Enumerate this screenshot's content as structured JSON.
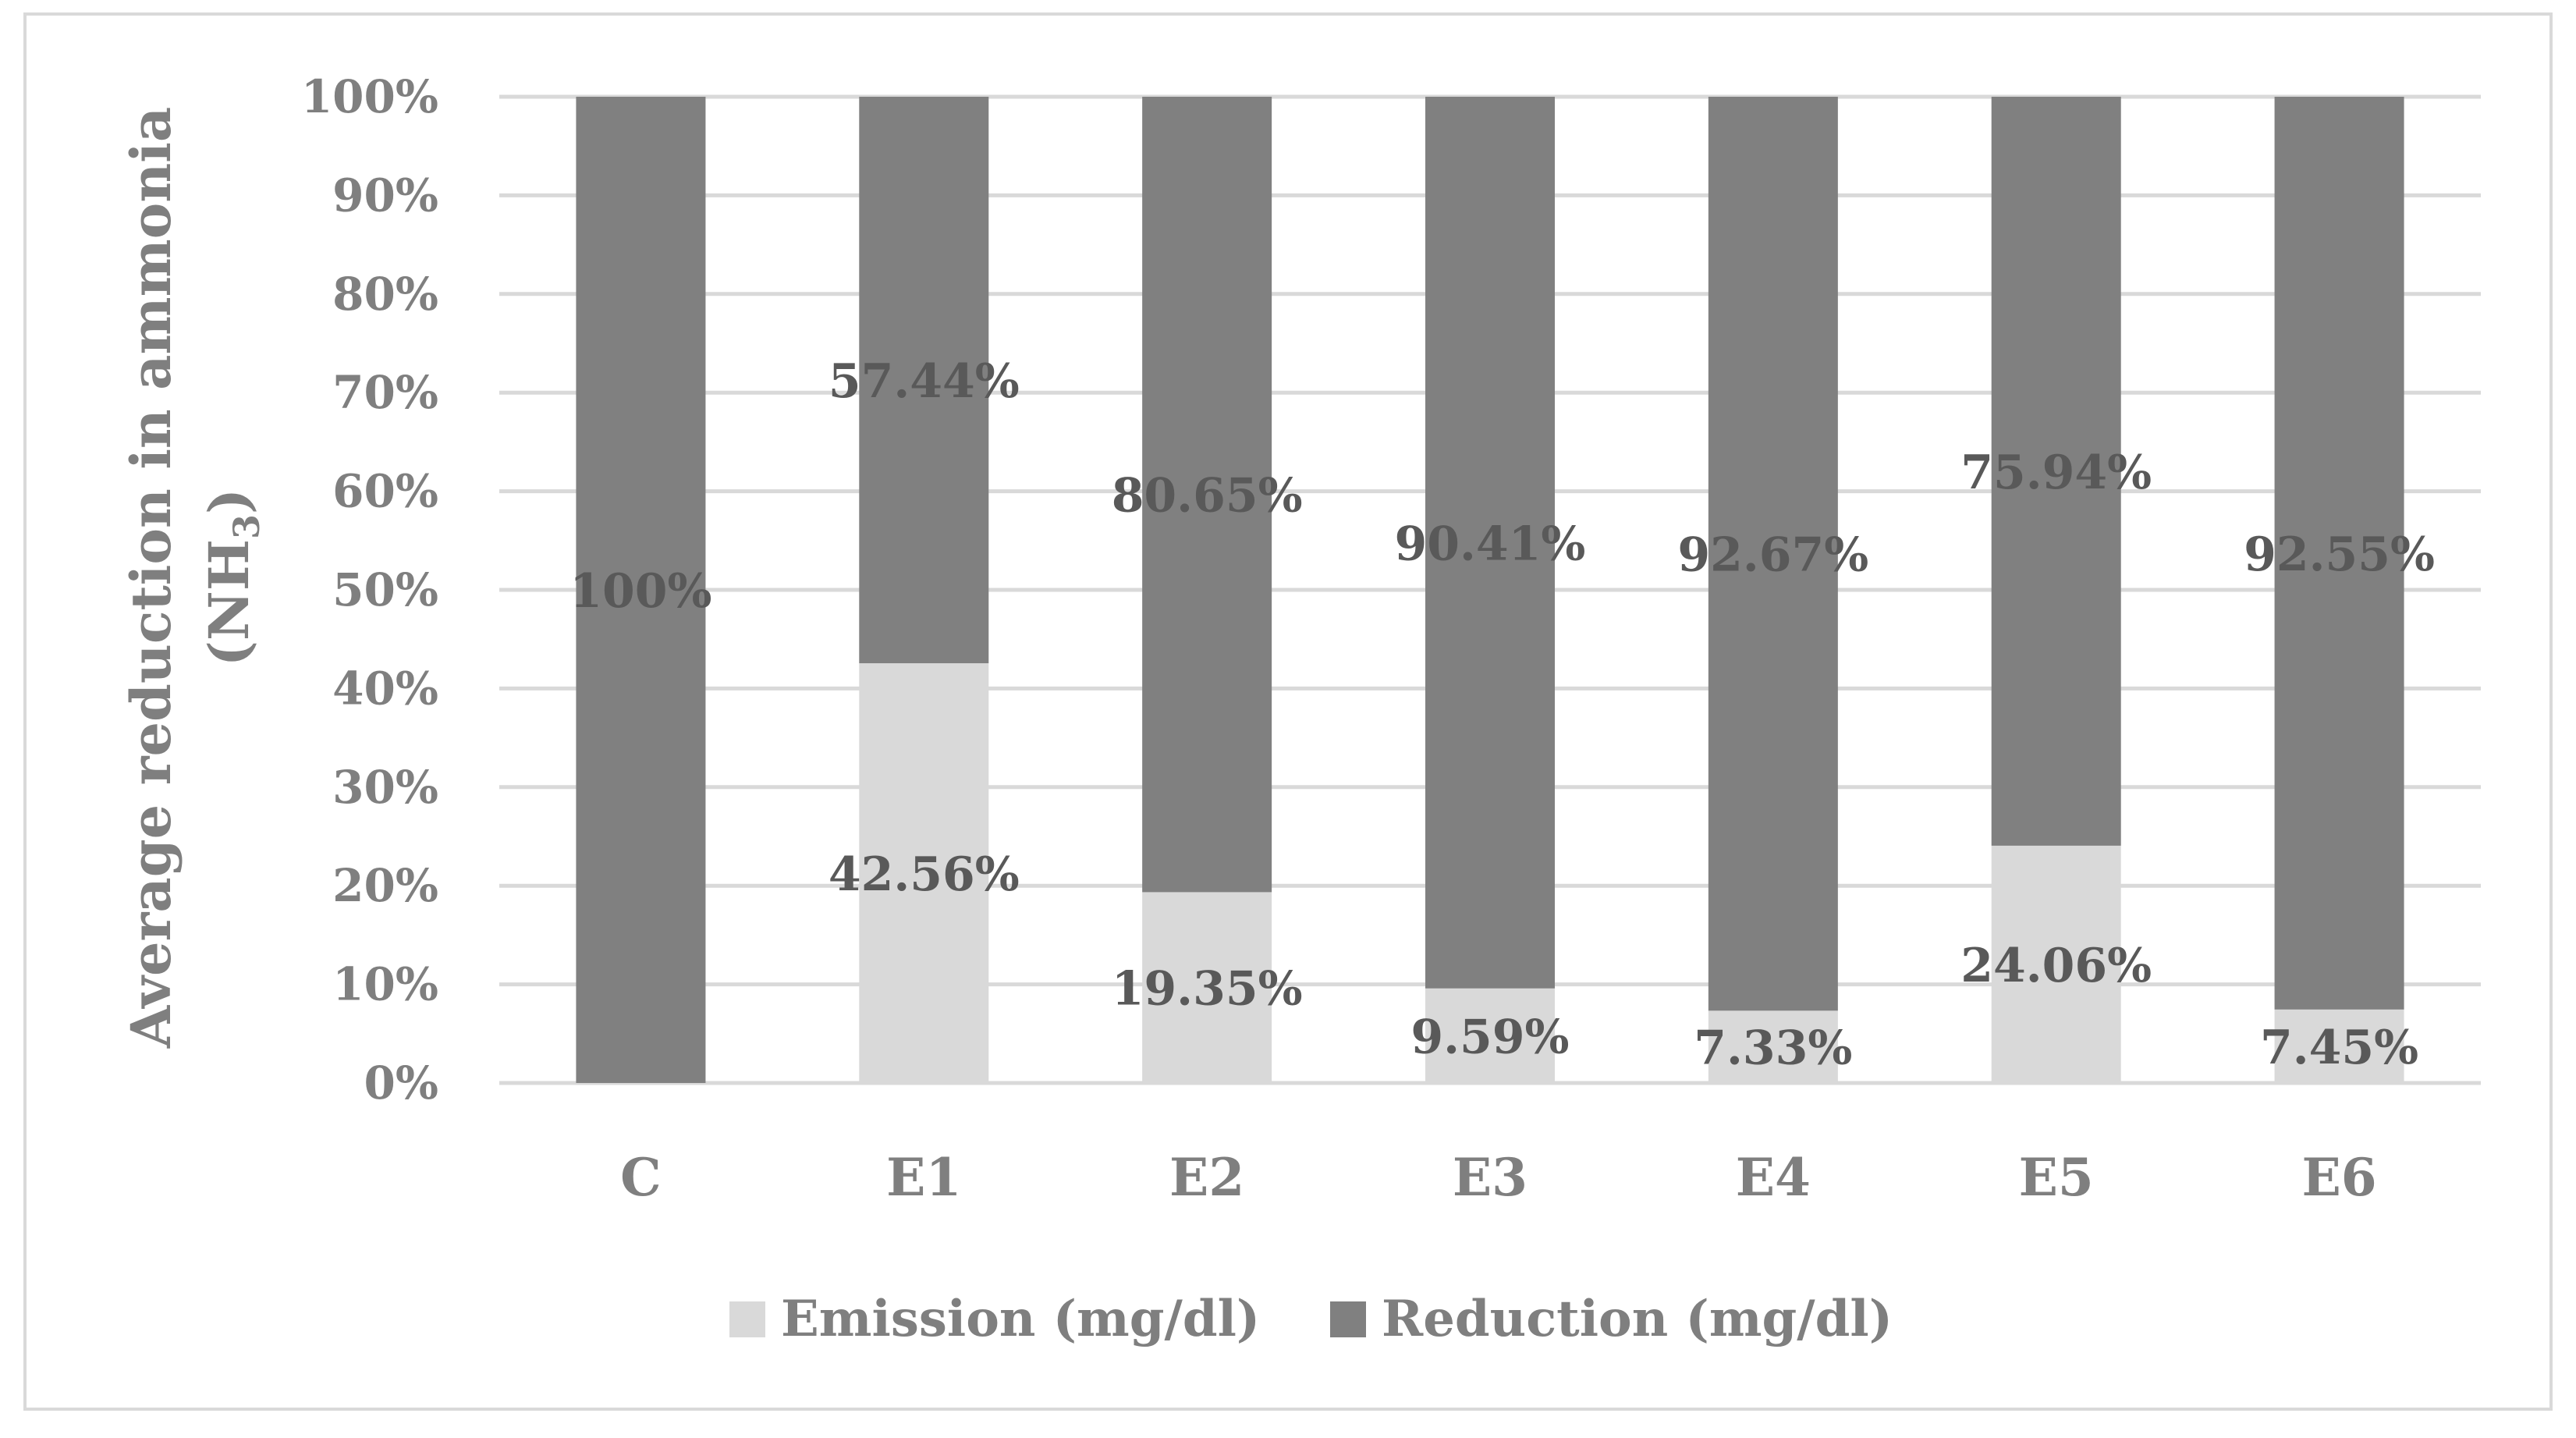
{
  "chart_data": {
    "type": "bar",
    "stacked": true,
    "percent_stacked": true,
    "categories": [
      "C",
      "E1",
      "E2",
      "E3",
      "E4",
      "E5",
      "E6"
    ],
    "series": [
      {
        "name": "Emission (mg/dl)",
        "color": "#d9d9d9",
        "values": [
          0,
          42.56,
          19.35,
          9.59,
          7.33,
          24.06,
          7.45
        ],
        "labels": [
          "",
          "42.56%",
          "19.35%",
          "9.59%",
          "7.33%",
          "24.06%",
          "7.45%"
        ]
      },
      {
        "name": "Reduction (mg/dl)",
        "color": "#808080",
        "values": [
          100,
          57.44,
          80.65,
          90.41,
          92.67,
          75.94,
          92.55
        ],
        "labels": [
          "100%",
          "57.44%",
          "80.65%",
          "90.41%",
          "92.67%",
          "75.94%",
          "92.55%"
        ]
      }
    ],
    "ylabel_line1": "Average reduction in ammonia",
    "ylabel_line2_prefix": "(NH",
    "ylabel_line2_sub": "3",
    "ylabel_line2_suffix": ")",
    "xlabel": "",
    "ylim": [
      0,
      100
    ],
    "yticks": [
      "0%",
      "10%",
      "20%",
      "30%",
      "40%",
      "50%",
      "60%",
      "70%",
      "80%",
      "90%",
      "100%"
    ],
    "grid": true,
    "legend_position": "bottom"
  }
}
